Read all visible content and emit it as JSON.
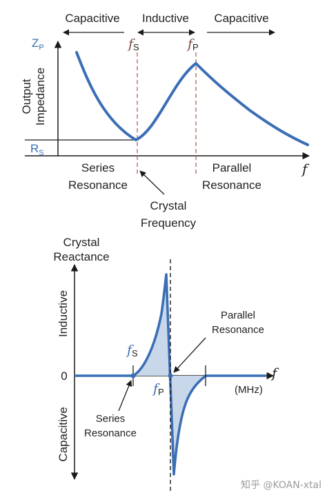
{
  "top": {
    "regions": [
      "Capacitive",
      "Inductive",
      "Capacitive"
    ],
    "y_axis_label_line1": "Output",
    "y_axis_label_line2": "Impedance",
    "zp_main": "Z",
    "zp_sub": "P",
    "rs_main": "R",
    "rs_sub": "S",
    "fs_main": "f",
    "fs_sub": "S",
    "fp_main": "f",
    "fp_sub": "P",
    "x_axis_label": "f",
    "series_line1": "Series",
    "series_line2": "Resonance",
    "parallel_line1": "Parallel",
    "parallel_line2": "Resonance",
    "crystal_line1": "Crystal",
    "crystal_line2": "Frequency"
  },
  "bottom": {
    "title_line1": "Crystal",
    "title_line2": "Reactance",
    "inductive": "Inductive",
    "capacitive": "Capacitive",
    "zero": "0",
    "fs_main": "f",
    "fs_sub": "S",
    "fp_main": "f",
    "fp_sub": "P",
    "x_axis_label": "f",
    "units": "(MHz)",
    "parallel_line1": "Parallel",
    "parallel_line2": "Resonance",
    "series_line1": "Series",
    "series_line2": "Resonance"
  },
  "colors": {
    "curve": "#3a6eb5",
    "fill": "#c9d7ea",
    "dashed_fs": "#b07060",
    "axis": "#1a1a1a"
  },
  "watermark": "知乎 @KOAN-xtal"
}
